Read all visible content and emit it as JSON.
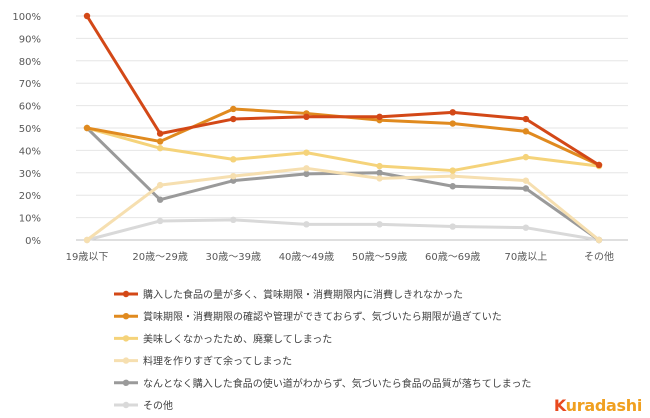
{
  "chart_data": {
    "type": "line",
    "categories": [
      "19歳以下",
      "20歳～29歳",
      "30歳～39歳",
      "40歳～49歳",
      "50歳～59歳",
      "60歳～69歳",
      "70歳以上",
      "その他"
    ],
    "ylim": [
      0,
      100
    ],
    "yticks": [
      "0%",
      "10%",
      "20%",
      "30%",
      "40%",
      "50%",
      "60%",
      "70%",
      "80%",
      "90%",
      "100%"
    ],
    "grid": true,
    "legend_position": "bottom",
    "series": [
      {
        "name": "購入した食品の量が多く、賞味期限・消費期限内に消費しきれなかった",
        "color": "#d34817",
        "values": [
          100,
          47.5,
          54,
          55,
          55,
          57,
          54,
          33.5
        ]
      },
      {
        "name": "賞味期限・消費期限の確認や管理ができておらず、気づいたら期限が過ぎていた",
        "color": "#e08a1f",
        "values": [
          50,
          44,
          58.5,
          56.5,
          53.5,
          52,
          48.5,
          33.5
        ]
      },
      {
        "name": "美味しくなかったため、廃棄してしまった",
        "color": "#f5d37a",
        "values": [
          50,
          41,
          36,
          39,
          33,
          31,
          37,
          33
        ]
      },
      {
        "name": "料理を作りすぎて余ってしまった",
        "color": "#f6dfb0",
        "values": [
          0,
          24.5,
          28.5,
          32,
          27.5,
          28.5,
          26.5,
          0
        ]
      },
      {
        "name": "なんとなく購入した食品の使い道がわからず、気づいたら食品の品質が落ちてしまった",
        "color": "#9a9a9a",
        "values": [
          50,
          18,
          26.5,
          29.5,
          30,
          24,
          23,
          0
        ]
      },
      {
        "name": "その他",
        "color": "#d9d9d9",
        "values": [
          0,
          8.5,
          9,
          7,
          7,
          6,
          5.5,
          0
        ]
      }
    ]
  },
  "brand": {
    "text": "Kuradashi",
    "first_letter_color": "#e84a1f",
    "rest_color": "#f0a020"
  }
}
